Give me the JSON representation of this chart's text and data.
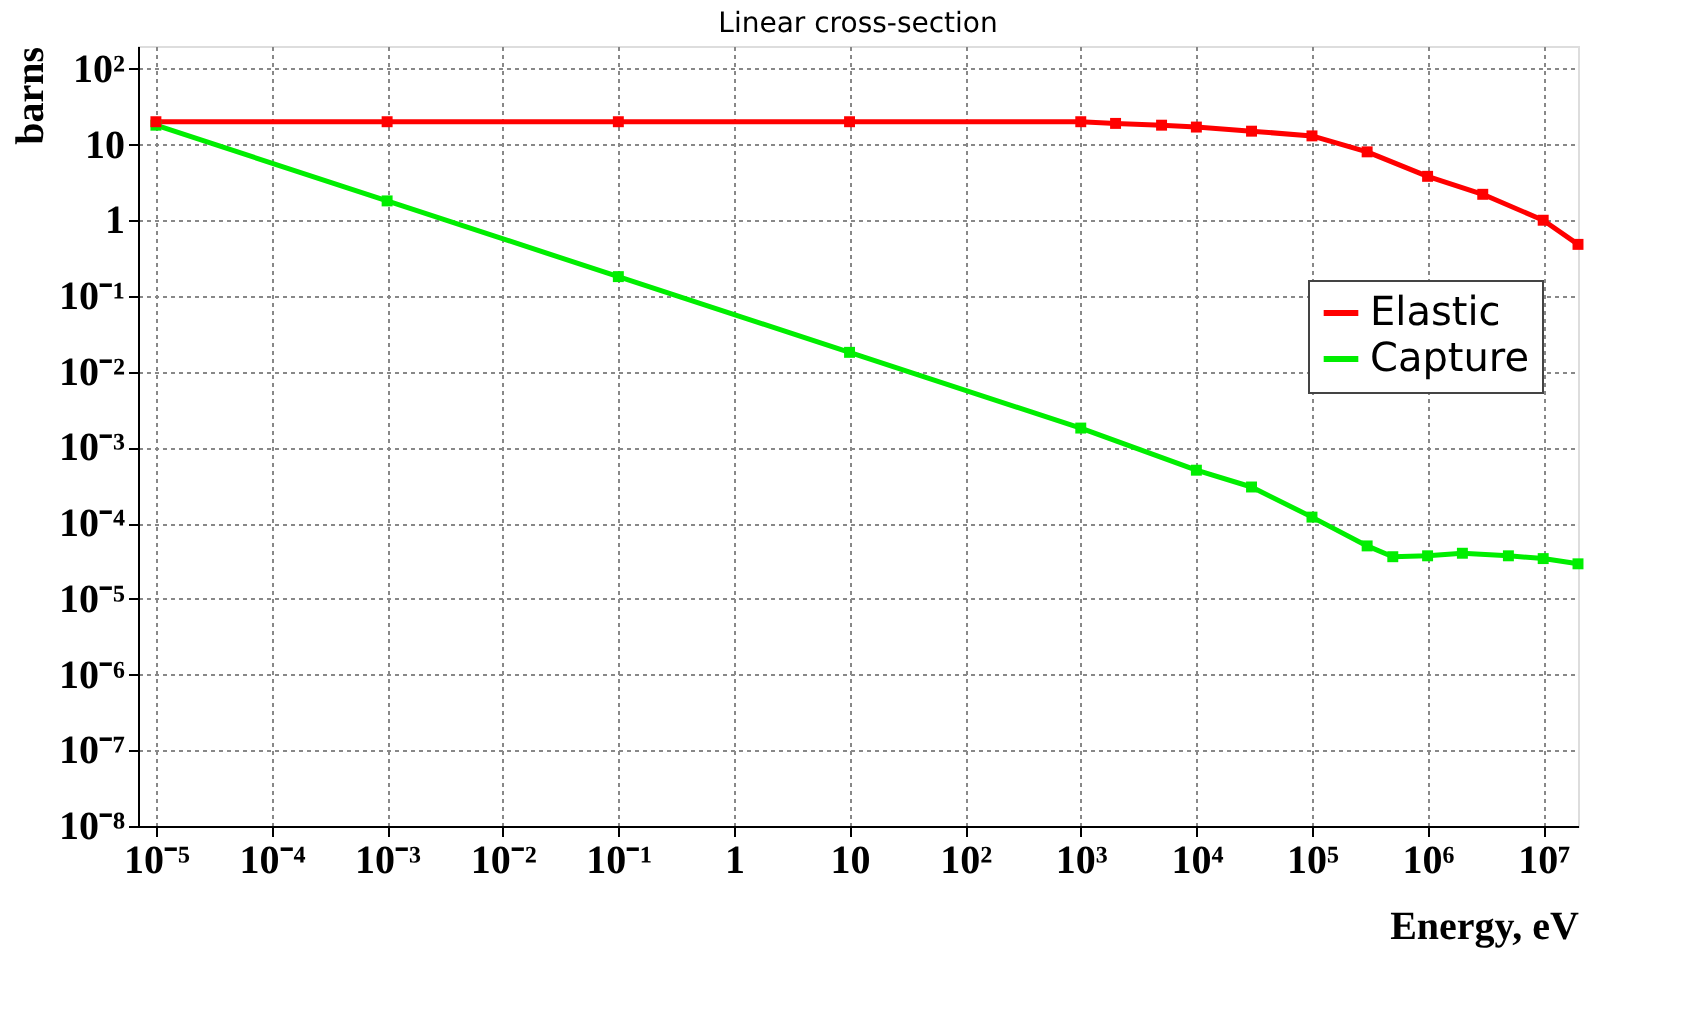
{
  "chart_data": {
    "type": "line",
    "title": "Linear cross-section",
    "xlabel": "Energy, eV",
    "ylabel": "barns",
    "log": "xy",
    "grid": true,
    "legend": "right",
    "marker": "square",
    "line_style": "solid",
    "xlim": [
      7e-06,
      20000000.0
    ],
    "ylim": [
      1e-08,
      200
    ],
    "xticks": [
      {
        "value": 1e-05,
        "label": "10⁻⁵"
      },
      {
        "value": 0.0001,
        "label": "10⁻⁴"
      },
      {
        "value": 0.001,
        "label": "10⁻³"
      },
      {
        "value": 0.01,
        "label": "10⁻²"
      },
      {
        "value": 0.1,
        "label": "10⁻¹"
      },
      1,
      10,
      {
        "value": 100,
        "label": "10²"
      },
      {
        "value": 1000,
        "label": "10³"
      },
      {
        "value": 10000,
        "label": "10⁴"
      },
      {
        "value": 100000,
        "label": "10⁵"
      },
      {
        "value": 1000000,
        "label": "10⁶"
      },
      {
        "value": 10000000,
        "label": "10⁷"
      }
    ],
    "yticks": [
      {
        "value": 1e-08,
        "label": "10⁻⁸"
      },
      {
        "value": 1e-07,
        "label": "10⁻⁷"
      },
      {
        "value": 1e-06,
        "label": "10⁻⁶"
      },
      {
        "value": 1e-05,
        "label": "10⁻⁵"
      },
      {
        "value": 0.0001,
        "label": "10⁻⁴"
      },
      {
        "value": 0.001,
        "label": "10⁻³"
      },
      {
        "value": 0.01,
        "label": "10⁻²"
      },
      {
        "value": 0.1,
        "label": "10⁻¹"
      },
      1,
      10,
      {
        "value": 100,
        "label": "10²"
      }
    ],
    "series": [
      {
        "name": "Elastic",
        "color": "#ff0000",
        "x": [
          1e-05,
          0.001,
          0.1,
          10,
          1000,
          2000,
          5000,
          10000,
          30000,
          100000,
          300000,
          1000000,
          3000000,
          10000000,
          20000000
        ],
        "values": [
          20,
          20,
          20,
          20,
          20,
          19,
          18,
          17,
          15,
          13,
          8,
          3.8,
          2.2,
          1.0,
          0.48
        ]
      },
      {
        "name": "Capture",
        "color": "#00ee00",
        "x": [
          1e-05,
          0.001,
          0.1,
          10,
          1000,
          10000,
          30000,
          100000,
          300000,
          500000,
          1000000,
          2000000,
          5000000,
          10000000,
          20000000
        ],
        "values": [
          18,
          1.8,
          0.18,
          0.018,
          0.0018,
          0.0005,
          0.0003,
          0.00012,
          5e-05,
          3.6e-05,
          3.7e-05,
          4e-05,
          3.7e-05,
          3.4e-05,
          2.9e-05
        ]
      }
    ]
  }
}
